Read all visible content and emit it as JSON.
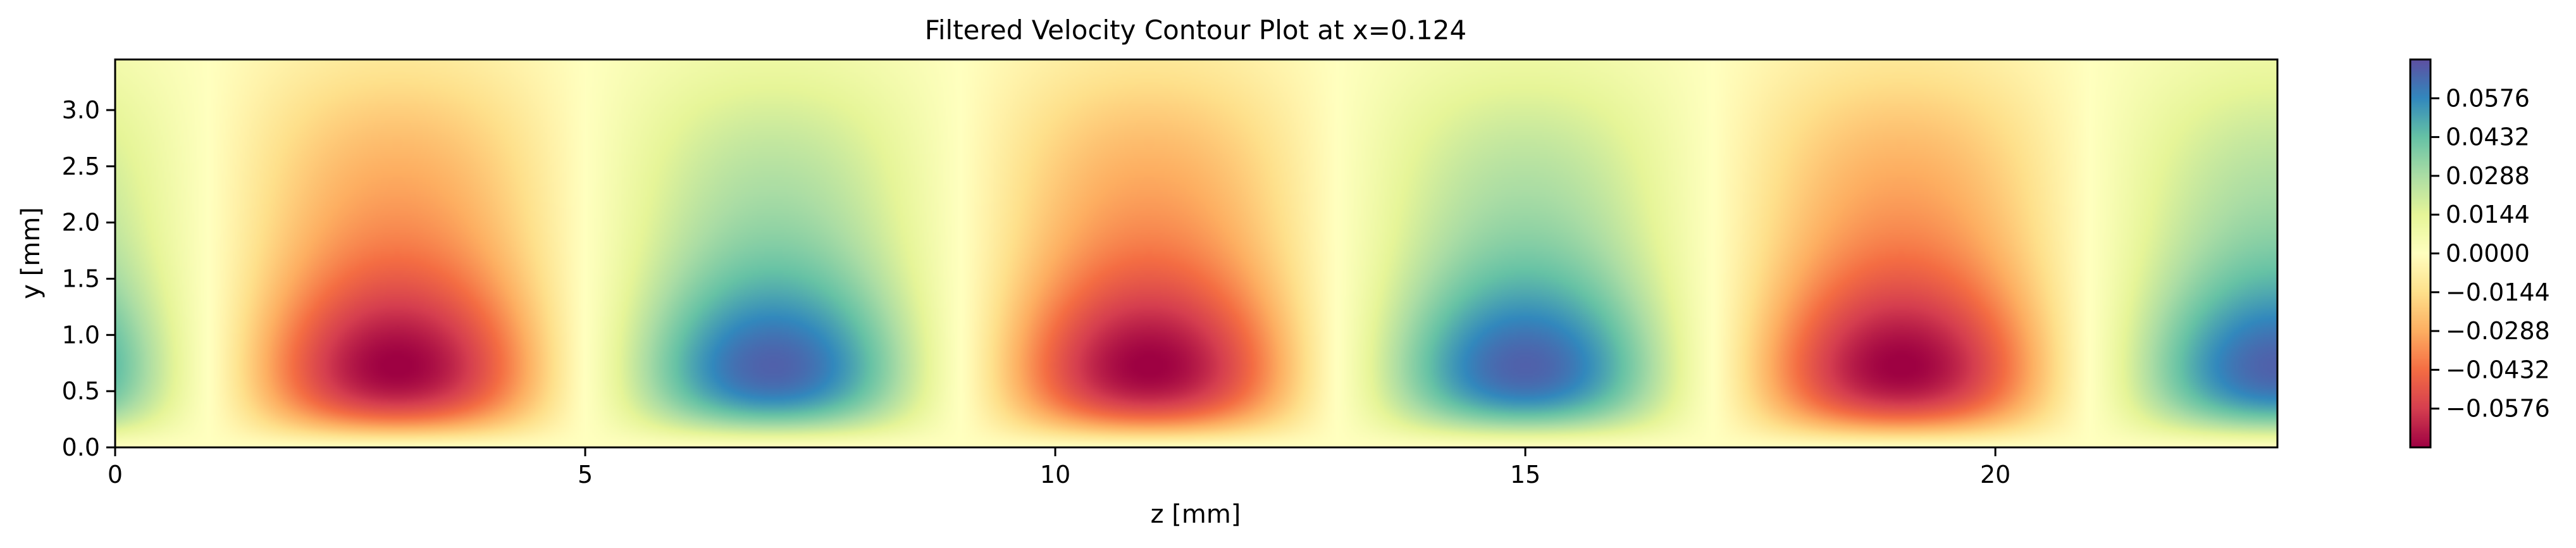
{
  "chart_data": {
    "type": "heatmap",
    "title": "Filtered Velocity Contour Plot at x=0.124",
    "xlabel": "z [mm]",
    "ylabel": "y [mm]",
    "xlim": [
      0,
      23
    ],
    "ylim": [
      0,
      3.45
    ],
    "x_ticks": [
      0,
      5,
      10,
      15,
      20
    ],
    "x_tick_labels": [
      "0",
      "5",
      "10",
      "15",
      "20"
    ],
    "y_ticks": [
      0.0,
      0.5,
      1.0,
      1.5,
      2.0,
      2.5,
      3.0
    ],
    "y_tick_labels": [
      "0.0",
      "0.5",
      "1.0",
      "1.5",
      "2.0",
      "2.5",
      "3.0"
    ],
    "colormap": "Spectral",
    "colorbar": {
      "vmin": -0.072,
      "vmax": 0.072,
      "ticks": [
        0.0576,
        0.0432,
        0.0288,
        0.0144,
        0.0,
        -0.0144,
        -0.0288,
        -0.0432,
        -0.0576
      ],
      "tick_labels": [
        "0.0576",
        "0.0432",
        "0.0288",
        "0.0144",
        "0.0000",
        "−0.0144",
        "−0.0288",
        "−0.0432",
        "−0.0576"
      ]
    },
    "field": {
      "description_free": true,
      "wavelength_mm": 8,
      "phase_mm": 5,
      "peak_amplitude": 0.072,
      "peak_y_mm": 0.72,
      "upper_amplitude": 0.018,
      "upper_y_mm": 2.6,
      "extrema": [
        {
          "z": 3.0,
          "y": 0.72,
          "value": -0.072
        },
        {
          "z": 7.0,
          "y": 0.72,
          "value": 0.066
        },
        {
          "z": 11.0,
          "y": 0.72,
          "value": -0.072
        },
        {
          "z": 15.0,
          "y": 0.72,
          "value": 0.066
        },
        {
          "z": 19.0,
          "y": 0.72,
          "value": -0.072
        },
        {
          "z": 23.0,
          "y": 0.72,
          "value": 0.066
        }
      ]
    },
    "grid": false
  }
}
